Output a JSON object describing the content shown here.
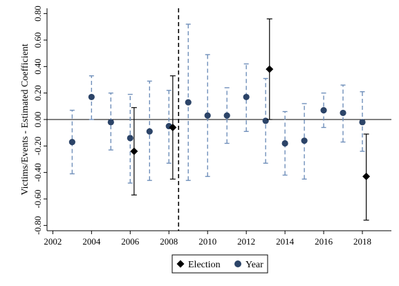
{
  "chart_data": {
    "type": "scatter",
    "title": "",
    "xlabel": "",
    "ylabel": "Victims/Events - Estimated Coefficient",
    "xlim": [
      2001.7,
      2019.5
    ],
    "ylim": [
      -0.84,
      0.84
    ],
    "x_ticks": [
      2002,
      2004,
      2006,
      2008,
      2010,
      2012,
      2014,
      2016,
      2018
    ],
    "x_tick_labels": [
      "2002",
      "2004",
      "2006",
      "2008",
      "2010",
      "2012",
      "2014",
      "2016",
      "2018"
    ],
    "y_ticks": [
      -0.8,
      -0.6,
      -0.4,
      -0.2,
      0.0,
      0.2,
      0.4,
      0.6,
      0.8
    ],
    "y_tick_labels": [
      "-0.80",
      "-0.60",
      "-0.40",
      "-0.20",
      "0.00",
      "0.20",
      "0.40",
      "0.60",
      "0.80"
    ],
    "reference_line_y": 0,
    "vertical_line_x": 2008.5,
    "grid": false,
    "legend_position": "bottom",
    "series": [
      {
        "name": "Election",
        "marker": "diamond",
        "color": "#000000",
        "ci_style": "solid",
        "points": [
          {
            "x": 2006.2,
            "y": -0.24,
            "lo": -0.57,
            "hi": 0.09
          },
          {
            "x": 2008.2,
            "y": -0.06,
            "lo": -0.45,
            "hi": 0.33
          },
          {
            "x": 2013.2,
            "y": 0.38,
            "lo": 0.0,
            "hi": 0.76
          },
          {
            "x": 2018.2,
            "y": -0.43,
            "lo": -0.76,
            "hi": -0.11
          }
        ]
      },
      {
        "name": "Year",
        "marker": "circle",
        "color": "#2c4468",
        "ci_color": "#6f8fba",
        "ci_style": "dashed",
        "points": [
          {
            "x": 2003,
            "y": -0.17,
            "lo": -0.41,
            "hi": 0.07
          },
          {
            "x": 2004,
            "y": 0.17,
            "lo": 0.0,
            "hi": 0.33
          },
          {
            "x": 2005,
            "y": -0.02,
            "lo": -0.23,
            "hi": 0.2
          },
          {
            "x": 2006,
            "y": -0.14,
            "lo": -0.48,
            "hi": 0.19
          },
          {
            "x": 2007,
            "y": -0.09,
            "lo": -0.46,
            "hi": 0.29
          },
          {
            "x": 2008,
            "y": -0.05,
            "lo": -0.33,
            "hi": 0.22
          },
          {
            "x": 2009,
            "y": 0.13,
            "lo": -0.46,
            "hi": 0.72
          },
          {
            "x": 2010,
            "y": 0.03,
            "lo": -0.43,
            "hi": 0.49
          },
          {
            "x": 2011,
            "y": 0.03,
            "lo": -0.18,
            "hi": 0.24
          },
          {
            "x": 2012,
            "y": 0.17,
            "lo": -0.09,
            "hi": 0.42
          },
          {
            "x": 2013,
            "y": -0.01,
            "lo": -0.33,
            "hi": 0.31
          },
          {
            "x": 2014,
            "y": -0.18,
            "lo": -0.42,
            "hi": 0.06
          },
          {
            "x": 2015,
            "y": -0.16,
            "lo": -0.45,
            "hi": 0.12
          },
          {
            "x": 2016,
            "y": 0.07,
            "lo": -0.06,
            "hi": 0.2
          },
          {
            "x": 2017,
            "y": 0.05,
            "lo": -0.17,
            "hi": 0.26
          },
          {
            "x": 2018,
            "y": -0.02,
            "lo": -0.24,
            "hi": 0.21
          }
        ]
      }
    ]
  }
}
